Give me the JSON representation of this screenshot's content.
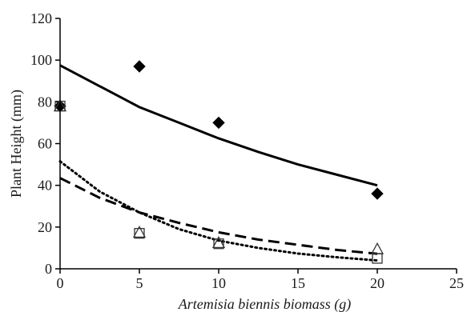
{
  "chart_data": {
    "type": "scatter",
    "title": "",
    "xlabel": "Artemisia biennis biomass (g)",
    "ylabel": "Plant Height (mm)",
    "xlim": [
      0,
      25
    ],
    "ylim": [
      0,
      120
    ],
    "xticks": [
      0,
      5,
      10,
      15,
      20,
      25
    ],
    "yticks": [
      0,
      20,
      40,
      60,
      80,
      100,
      120
    ],
    "grid": false,
    "legend": "none",
    "series": [
      {
        "marker": "diamond",
        "fill": "#000000",
        "line_style": "solid",
        "x": [
          0,
          5,
          10,
          20
        ],
        "y": [
          78,
          97,
          70,
          36
        ],
        "fit": {
          "x": [
            0,
            2.5,
            5,
            7.5,
            10,
            12.5,
            15,
            17.5,
            20
          ],
          "y": [
            97.5,
            87.5,
            77.5,
            70,
            62.5,
            56,
            50,
            45,
            40
          ]
        }
      },
      {
        "marker": "square",
        "fill": "none",
        "line_style": "dotted",
        "x": [
          0,
          5,
          10,
          20
        ],
        "y": [
          78,
          17,
          12,
          5
        ],
        "fit": {
          "x": [
            0,
            2.5,
            5,
            7.5,
            10,
            12.5,
            15,
            17.5,
            20
          ],
          "y": [
            51.5,
            37,
            27,
            19,
            13.5,
            10,
            7.3,
            5.5,
            4
          ]
        }
      },
      {
        "marker": "triangle",
        "fill": "none",
        "line_style": "dashed",
        "x": [
          0,
          5,
          10,
          20
        ],
        "y": [
          78,
          17.5,
          12.5,
          9.5
        ],
        "fit": {
          "x": [
            0,
            2.5,
            5,
            7.5,
            10,
            12.5,
            15,
            17.5,
            20
          ],
          "y": [
            43.5,
            34,
            27,
            22,
            17.5,
            14,
            11.5,
            9,
            7.2
          ]
        }
      }
    ]
  }
}
